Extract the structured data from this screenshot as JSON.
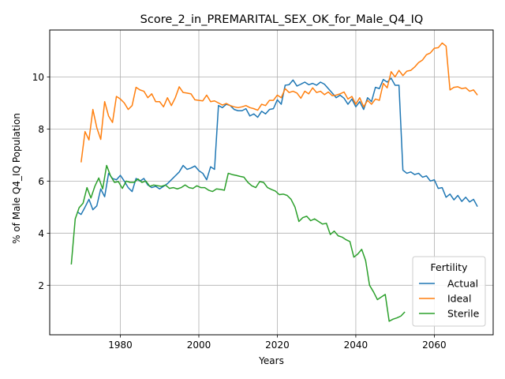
{
  "chart_data": {
    "type": "line",
    "title": "Score_2_in_PREMARITAL_SEX_OK_for_Male_Q4_IQ",
    "xlabel": "Years",
    "ylabel": "% of Male Q4_IQ Population",
    "xlim": [
      1962,
      2075
    ],
    "ylim": [
      0.1,
      11.8
    ],
    "xticks": [
      1980,
      2000,
      2020,
      2040,
      2060
    ],
    "yticks": [
      2,
      4,
      6,
      8,
      10
    ],
    "grid": true,
    "legend": {
      "title": "Fertility",
      "position": "lower-right"
    },
    "series": [
      {
        "name": "Actual",
        "color": "#1f77b4",
        "points": [
          [
            1969,
            4.82
          ],
          [
            1970,
            4.72
          ],
          [
            1971,
            5.0
          ],
          [
            1972,
            5.3
          ],
          [
            1973,
            4.9
          ],
          [
            1974,
            5.05
          ],
          [
            1975,
            5.7
          ],
          [
            1976,
            5.4
          ],
          [
            1977,
            6.3
          ],
          [
            1978,
            6.1
          ],
          [
            1979,
            6.05
          ],
          [
            1980,
            6.22
          ],
          [
            1981,
            6.0
          ],
          [
            1982,
            5.75
          ],
          [
            1983,
            5.6
          ],
          [
            1984,
            6.1
          ],
          [
            1985,
            6.0
          ],
          [
            1986,
            6.1
          ],
          [
            1987,
            5.85
          ],
          [
            1988,
            5.75
          ],
          [
            1989,
            5.8
          ],
          [
            1990,
            5.7
          ],
          [
            1991,
            5.8
          ],
          [
            1992,
            5.9
          ],
          [
            1993,
            6.05
          ],
          [
            1994,
            6.2
          ],
          [
            1995,
            6.35
          ],
          [
            1996,
            6.6
          ],
          [
            1997,
            6.45
          ],
          [
            1998,
            6.5
          ],
          [
            1999,
            6.58
          ],
          [
            2000,
            6.4
          ],
          [
            2001,
            6.3
          ],
          [
            2002,
            6.05
          ],
          [
            2003,
            6.55
          ],
          [
            2004,
            6.45
          ],
          [
            2005,
            8.9
          ],
          [
            2006,
            8.82
          ],
          [
            2007,
            8.95
          ],
          [
            2008,
            8.9
          ],
          [
            2009,
            8.75
          ],
          [
            2010,
            8.7
          ],
          [
            2011,
            8.7
          ],
          [
            2012,
            8.78
          ],
          [
            2013,
            8.5
          ],
          [
            2014,
            8.58
          ],
          [
            2015,
            8.45
          ],
          [
            2016,
            8.68
          ],
          [
            2017,
            8.58
          ],
          [
            2018,
            8.75
          ],
          [
            2019,
            8.78
          ],
          [
            2020,
            9.12
          ],
          [
            2021,
            8.95
          ],
          [
            2022,
            9.68
          ],
          [
            2023,
            9.7
          ],
          [
            2024,
            9.88
          ],
          [
            2025,
            9.65
          ],
          [
            2026,
            9.72
          ],
          [
            2027,
            9.8
          ],
          [
            2028,
            9.7
          ],
          [
            2029,
            9.75
          ],
          [
            2030,
            9.68
          ],
          [
            2031,
            9.8
          ],
          [
            2032,
            9.72
          ],
          [
            2033,
            9.55
          ],
          [
            2034,
            9.38
          ],
          [
            2035,
            9.2
          ],
          [
            2036,
            9.3
          ],
          [
            2037,
            9.18
          ],
          [
            2038,
            8.95
          ],
          [
            2039,
            9.15
          ],
          [
            2040,
            8.85
          ],
          [
            2041,
            9.05
          ],
          [
            2042,
            8.75
          ],
          [
            2043,
            9.2
          ],
          [
            2044,
            9.05
          ],
          [
            2045,
            9.6
          ],
          [
            2046,
            9.55
          ],
          [
            2047,
            9.9
          ],
          [
            2048,
            9.8
          ],
          [
            2049,
            9.95
          ],
          [
            2050,
            9.68
          ],
          [
            2051,
            9.68
          ],
          [
            2052,
            6.42
          ],
          [
            2053,
            6.3
          ],
          [
            2054,
            6.35
          ],
          [
            2055,
            6.25
          ],
          [
            2056,
            6.3
          ],
          [
            2057,
            6.15
          ],
          [
            2058,
            6.2
          ],
          [
            2059,
            6.0
          ],
          [
            2060,
            6.05
          ],
          [
            2061,
            5.72
          ],
          [
            2062,
            5.75
          ],
          [
            2063,
            5.38
          ],
          [
            2064,
            5.5
          ],
          [
            2065,
            5.28
          ],
          [
            2066,
            5.45
          ],
          [
            2067,
            5.22
          ],
          [
            2068,
            5.38
          ],
          [
            2069,
            5.2
          ],
          [
            2070,
            5.3
          ],
          [
            2071,
            5.02
          ]
        ]
      },
      {
        "name": "Ideal",
        "color": "#ff7f0e",
        "points": [
          [
            1970,
            6.72
          ],
          [
            1971,
            7.9
          ],
          [
            1972,
            7.58
          ],
          [
            1973,
            8.75
          ],
          [
            1974,
            8.05
          ],
          [
            1975,
            7.6
          ],
          [
            1976,
            9.05
          ],
          [
            1977,
            8.5
          ],
          [
            1978,
            8.25
          ],
          [
            1979,
            9.25
          ],
          [
            1980,
            9.15
          ],
          [
            1981,
            9.0
          ],
          [
            1982,
            8.75
          ],
          [
            1983,
            8.9
          ],
          [
            1984,
            9.6
          ],
          [
            1985,
            9.5
          ],
          [
            1986,
            9.45
          ],
          [
            1987,
            9.2
          ],
          [
            1988,
            9.35
          ],
          [
            1989,
            9.05
          ],
          [
            1990,
            9.05
          ],
          [
            1991,
            8.85
          ],
          [
            1992,
            9.2
          ],
          [
            1993,
            8.9
          ],
          [
            1994,
            9.2
          ],
          [
            1995,
            9.62
          ],
          [
            1996,
            9.4
          ],
          [
            1997,
            9.38
          ],
          [
            1998,
            9.35
          ],
          [
            1999,
            9.12
          ],
          [
            2000,
            9.1
          ],
          [
            2001,
            9.08
          ],
          [
            2002,
            9.3
          ],
          [
            2003,
            9.05
          ],
          [
            2004,
            9.08
          ],
          [
            2005,
            9.0
          ],
          [
            2006,
            8.92
          ],
          [
            2007,
            8.98
          ],
          [
            2008,
            8.9
          ],
          [
            2009,
            8.85
          ],
          [
            2010,
            8.82
          ],
          [
            2011,
            8.85
          ],
          [
            2012,
            8.9
          ],
          [
            2013,
            8.82
          ],
          [
            2014,
            8.78
          ],
          [
            2015,
            8.72
          ],
          [
            2016,
            8.95
          ],
          [
            2017,
            8.9
          ],
          [
            2018,
            9.1
          ],
          [
            2019,
            9.1
          ],
          [
            2020,
            9.3
          ],
          [
            2021,
            9.2
          ],
          [
            2022,
            9.55
          ],
          [
            2023,
            9.4
          ],
          [
            2024,
            9.45
          ],
          [
            2025,
            9.38
          ],
          [
            2026,
            9.18
          ],
          [
            2027,
            9.45
          ],
          [
            2028,
            9.35
          ],
          [
            2029,
            9.58
          ],
          [
            2030,
            9.4
          ],
          [
            2031,
            9.45
          ],
          [
            2032,
            9.32
          ],
          [
            2033,
            9.42
          ],
          [
            2034,
            9.28
          ],
          [
            2035,
            9.3
          ],
          [
            2036,
            9.35
          ],
          [
            2037,
            9.42
          ],
          [
            2038,
            9.15
          ],
          [
            2039,
            9.25
          ],
          [
            2040,
            8.95
          ],
          [
            2041,
            9.2
          ],
          [
            2042,
            8.85
          ],
          [
            2043,
            9.1
          ],
          [
            2044,
            8.95
          ],
          [
            2045,
            9.15
          ],
          [
            2046,
            9.1
          ],
          [
            2047,
            9.75
          ],
          [
            2048,
            9.58
          ],
          [
            2049,
            10.2
          ],
          [
            2050,
            10.0
          ],
          [
            2051,
            10.25
          ],
          [
            2052,
            10.05
          ],
          [
            2053,
            10.22
          ],
          [
            2054,
            10.25
          ],
          [
            2055,
            10.38
          ],
          [
            2056,
            10.55
          ],
          [
            2057,
            10.65
          ],
          [
            2058,
            10.85
          ],
          [
            2059,
            10.92
          ],
          [
            2060,
            11.1
          ],
          [
            2061,
            11.12
          ],
          [
            2062,
            11.3
          ],
          [
            2063,
            11.18
          ],
          [
            2064,
            9.5
          ],
          [
            2065,
            9.6
          ],
          [
            2066,
            9.62
          ],
          [
            2067,
            9.55
          ],
          [
            2068,
            9.58
          ],
          [
            2069,
            9.45
          ],
          [
            2070,
            9.5
          ],
          [
            2071,
            9.3
          ]
        ]
      },
      {
        "name": "Sterile",
        "color": "#2ca02c",
        "points": [
          [
            1967.5,
            2.8
          ],
          [
            1968.5,
            4.55
          ],
          [
            1969.5,
            4.98
          ],
          [
            1970.5,
            5.15
          ],
          [
            1971.5,
            5.75
          ],
          [
            1972.5,
            5.35
          ],
          [
            1973.5,
            5.8
          ],
          [
            1974.5,
            6.12
          ],
          [
            1975.5,
            5.7
          ],
          [
            1976.5,
            6.6
          ],
          [
            1977.5,
            6.2
          ],
          [
            1978.5,
            5.95
          ],
          [
            1979.5,
            5.98
          ],
          [
            1980.5,
            5.72
          ],
          [
            1981.5,
            6.0
          ],
          [
            1982.5,
            5.95
          ],
          [
            1983.5,
            5.95
          ],
          [
            1984.5,
            6.08
          ],
          [
            1985.5,
            5.95
          ],
          [
            1986.5,
            6.0
          ],
          [
            1987.5,
            5.8
          ],
          [
            1988.5,
            5.85
          ],
          [
            1989.5,
            5.82
          ],
          [
            1990.5,
            5.8
          ],
          [
            1991.5,
            5.85
          ],
          [
            1992.5,
            5.72
          ],
          [
            1993.5,
            5.75
          ],
          [
            1994.5,
            5.7
          ],
          [
            1995.5,
            5.75
          ],
          [
            1996.5,
            5.85
          ],
          [
            1997.5,
            5.75
          ],
          [
            1998.5,
            5.72
          ],
          [
            1999.5,
            5.82
          ],
          [
            2000.5,
            5.75
          ],
          [
            2001.5,
            5.75
          ],
          [
            2002.5,
            5.65
          ],
          [
            2003.5,
            5.6
          ],
          [
            2004.5,
            5.7
          ],
          [
            2005.5,
            5.68
          ],
          [
            2006.5,
            5.65
          ],
          [
            2007.5,
            6.3
          ],
          [
            2008.5,
            6.25
          ],
          [
            2009.5,
            6.22
          ],
          [
            2010.5,
            6.18
          ],
          [
            2011.5,
            6.15
          ],
          [
            2012.5,
            5.95
          ],
          [
            2013.5,
            5.82
          ],
          [
            2014.5,
            5.75
          ],
          [
            2015.5,
            5.98
          ],
          [
            2016.5,
            5.95
          ],
          [
            2017.5,
            5.75
          ],
          [
            2018.5,
            5.68
          ],
          [
            2019.5,
            5.62
          ],
          [
            2020.5,
            5.48
          ],
          [
            2021.5,
            5.5
          ],
          [
            2022.5,
            5.45
          ],
          [
            2023.5,
            5.3
          ],
          [
            2024.5,
            5.0
          ],
          [
            2025.5,
            4.45
          ],
          [
            2026.5,
            4.6
          ],
          [
            2027.5,
            4.65
          ],
          [
            2028.5,
            4.48
          ],
          [
            2029.5,
            4.55
          ],
          [
            2030.5,
            4.45
          ],
          [
            2031.5,
            4.35
          ],
          [
            2032.5,
            4.38
          ],
          [
            2033.5,
            3.95
          ],
          [
            2034.5,
            4.08
          ],
          [
            2035.5,
            3.9
          ],
          [
            2036.5,
            3.85
          ],
          [
            2037.5,
            3.75
          ],
          [
            2038.5,
            3.68
          ],
          [
            2039.5,
            3.08
          ],
          [
            2040.5,
            3.2
          ],
          [
            2041.5,
            3.38
          ],
          [
            2042.5,
            2.95
          ],
          [
            2043.5,
            2.0
          ],
          [
            2044.5,
            1.75
          ],
          [
            2045.5,
            1.45
          ],
          [
            2046.5,
            1.55
          ],
          [
            2047.5,
            1.65
          ],
          [
            2048.5,
            0.62
          ],
          [
            2049.5,
            0.7
          ],
          [
            2050.5,
            0.75
          ],
          [
            2051.5,
            0.82
          ],
          [
            2052.5,
            0.98
          ]
        ]
      }
    ]
  }
}
